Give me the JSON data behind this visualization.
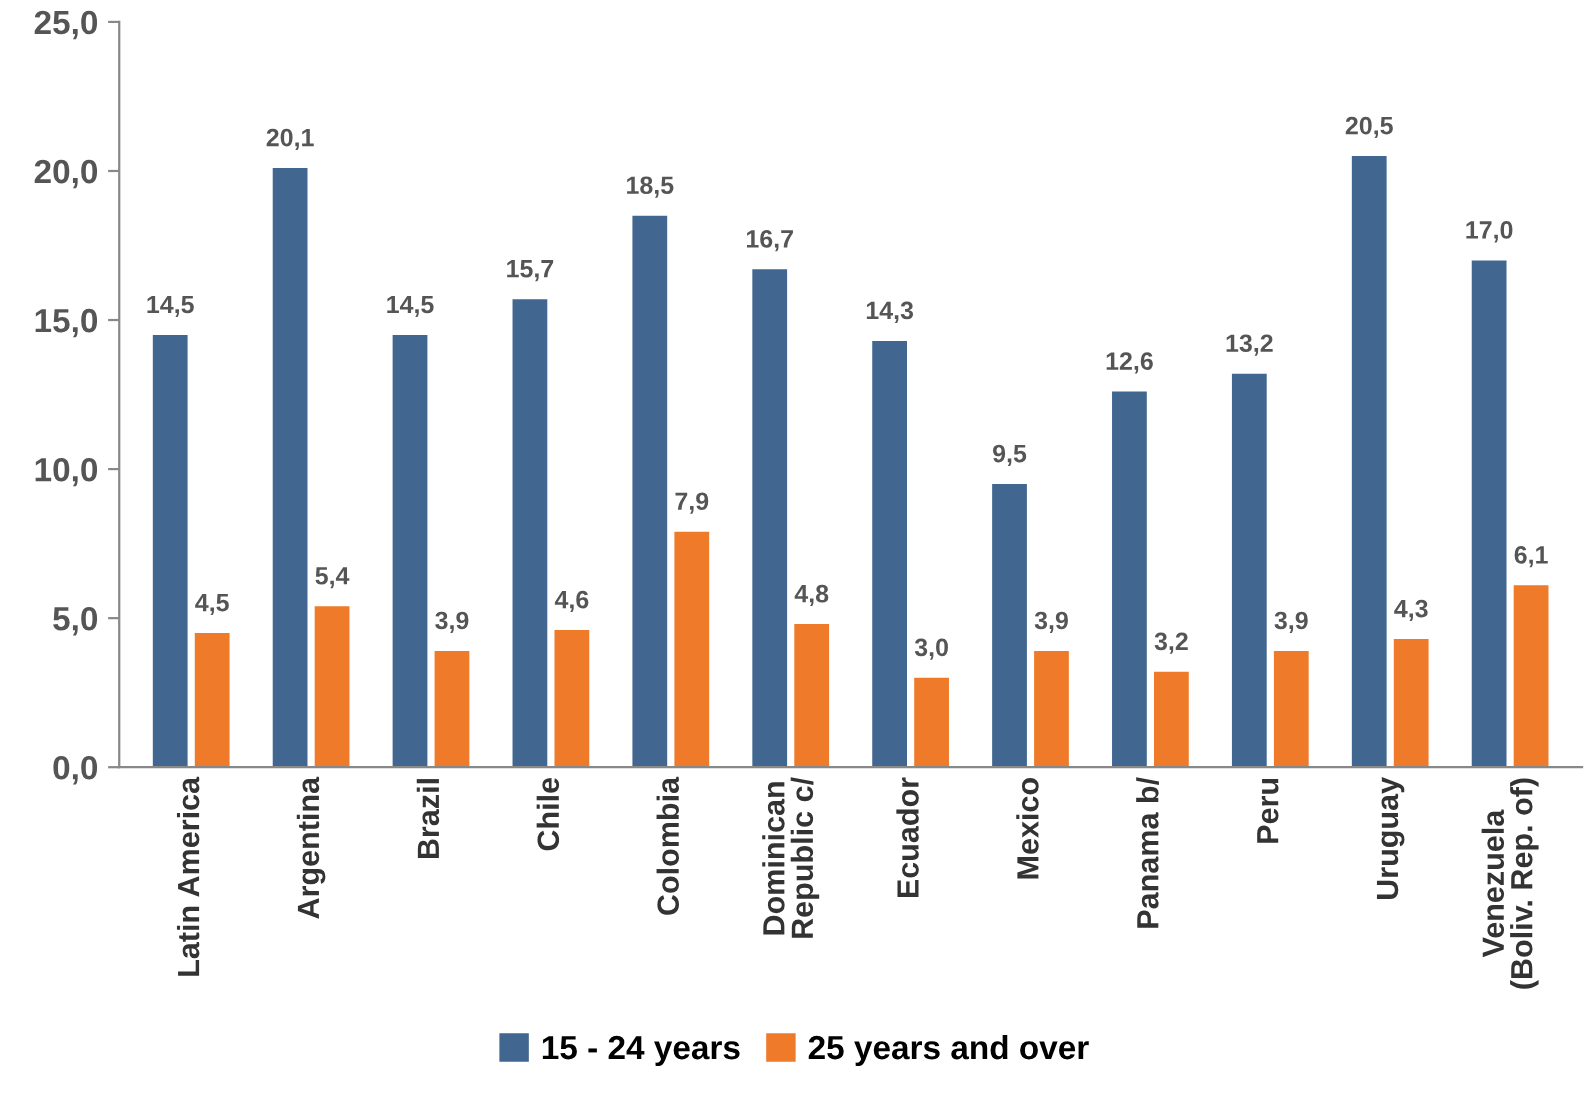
{
  "chart_data": {
    "type": "bar",
    "categories": [
      "Latin America",
      "Argentina",
      "Brazil",
      "Chile",
      "Colombia",
      "Dominican\nRepublic c/",
      "Ecuador",
      "Mexico",
      "Panama b/",
      "Peru",
      "Uruguay",
      "Venezuela\n(Boliv. Rep. of)"
    ],
    "series": [
      {
        "name": "15 - 24 years",
        "color": "#41668f",
        "values": [
          14.5,
          20.1,
          14.5,
          15.7,
          18.5,
          16.7,
          14.3,
          9.5,
          12.6,
          13.2,
          20.5,
          17.0
        ],
        "value_labels": [
          "14,5",
          "20,1",
          "14,5",
          "15,7",
          "18,5",
          "16,7",
          "14,3",
          "9,5",
          "12,6",
          "13,2",
          "20,5",
          "17,0"
        ]
      },
      {
        "name": "25 years and over",
        "color": "#ef7a2a",
        "values": [
          4.5,
          5.4,
          3.9,
          4.6,
          7.9,
          4.8,
          3.0,
          3.9,
          3.2,
          3.9,
          4.3,
          6.1
        ],
        "value_labels": [
          "4,5",
          "5,4",
          "3,9",
          "4,6",
          "7,9",
          "4,8",
          "3,0",
          "3,9",
          "3,2",
          "3,9",
          "4,3",
          "6,1"
        ]
      }
    ],
    "ylim": [
      0,
      25
    ],
    "yticks": [
      {
        "value": 0,
        "label": "0,0"
      },
      {
        "value": 5,
        "label": "5,0"
      },
      {
        "value": 10,
        "label": "10,0"
      },
      {
        "value": 15,
        "label": "15,0"
      },
      {
        "value": 20,
        "label": "20,0"
      },
      {
        "value": 25,
        "label": "25,0"
      }
    ],
    "grid": false,
    "legend": "bottom"
  }
}
